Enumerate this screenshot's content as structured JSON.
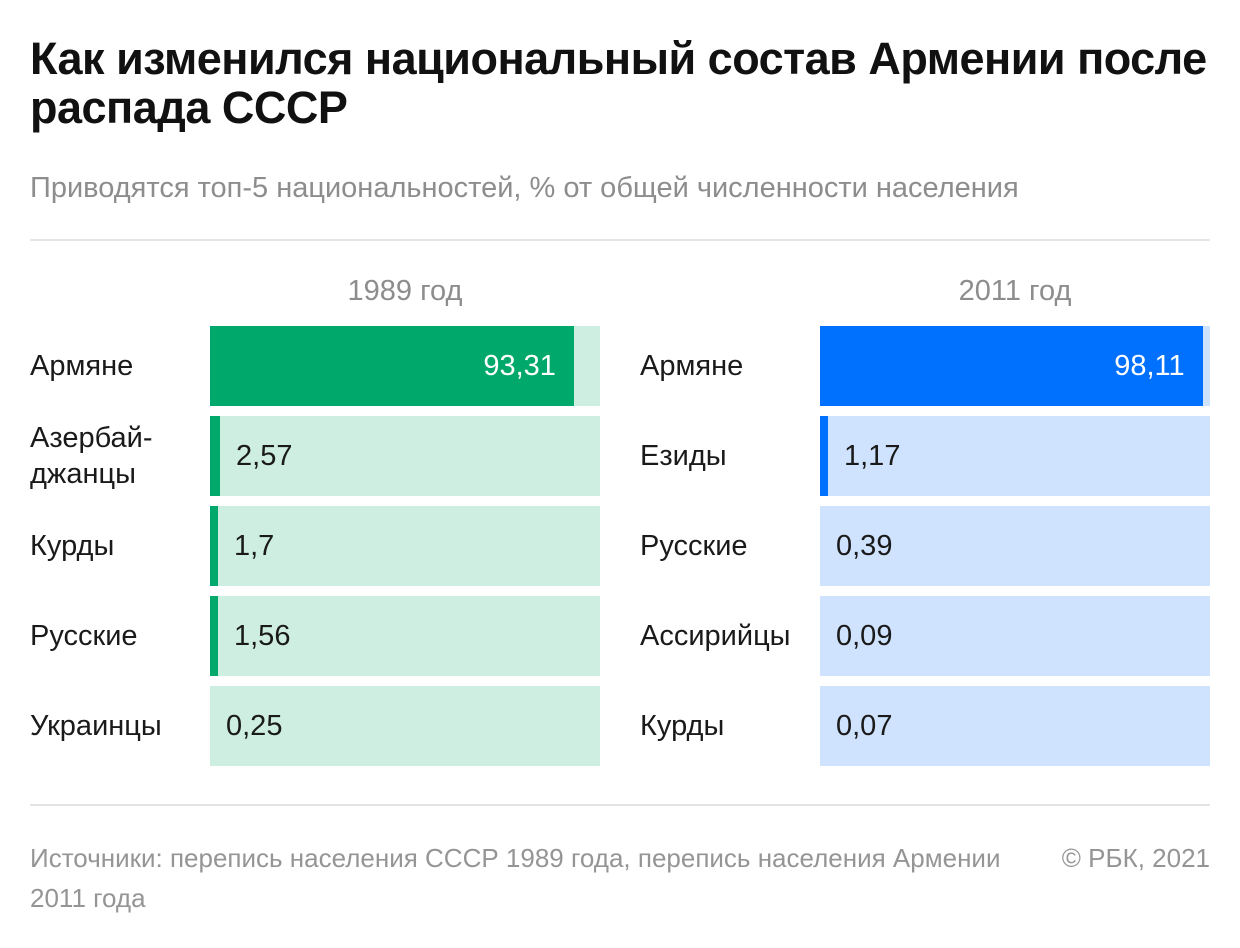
{
  "title": "Как изменился национальный состав Армении после распада СССР",
  "subtitle": "Приводятся топ-5 национальностей, % от общей численности населения",
  "source": "Источники: перепись населения СССР 1989 года, перепись населения Армении 2011 года",
  "copyright": "© РБК, 2021",
  "colors": {
    "green": "#00a86b",
    "green_light": "#cdeee0",
    "blue": "#0070ff",
    "blue_light": "#cfe3ff"
  },
  "chart_data": [
    {
      "type": "bar",
      "orientation": "horizontal",
      "title": "1989 год",
      "xlim": [
        0,
        100
      ],
      "categories": [
        "Армяне",
        "Азербай-джанцы",
        "Курды",
        "Русские",
        "Украинцы"
      ],
      "values": [
        93.31,
        2.57,
        1.7,
        1.56,
        0.25
      ],
      "value_labels": [
        "93,31",
        "2,57",
        "1,7",
        "1,56",
        "0,25"
      ]
    },
    {
      "type": "bar",
      "orientation": "horizontal",
      "title": "2011 год",
      "xlim": [
        0,
        100
      ],
      "categories": [
        "Армяне",
        "Езиды",
        "Русские",
        "Ассирийцы",
        "Курды"
      ],
      "values": [
        98.11,
        1.17,
        0.39,
        0.09,
        0.07
      ],
      "value_labels": [
        "98,11",
        "1,17",
        "0,39",
        "0,09",
        "0,07"
      ]
    }
  ]
}
